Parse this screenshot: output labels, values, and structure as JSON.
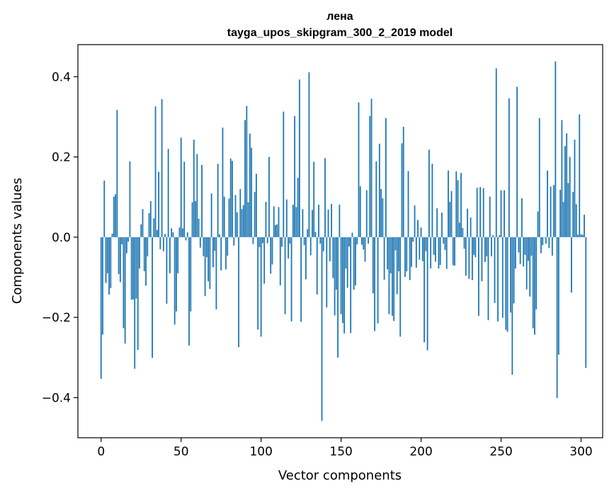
{
  "chart_data": {
    "type": "bar",
    "title": "лена",
    "subtitle": "tayga_upos_skipgram_300_2_2019 model",
    "xlabel": "Vector components",
    "ylabel": "Components values",
    "xlim": [
      -14.5,
      313.5
    ],
    "ylim": [
      -0.5,
      0.48
    ],
    "xticks": [
      0,
      50,
      100,
      150,
      200,
      250,
      300
    ],
    "xtick_labels": [
      "0",
      "50",
      "100",
      "150",
      "200",
      "250",
      "300"
    ],
    "yticks": [
      -0.4,
      -0.2,
      0.0,
      0.2,
      0.4
    ],
    "ytick_labels": [
      "−0.4",
      "−0.2",
      "0.0",
      "0.2",
      "0.4"
    ],
    "values": [
      -0.353,
      -0.243,
      0.141,
      -0.114,
      -0.09,
      -0.143,
      -0.127,
      0.009,
      0.101,
      0.107,
      0.317,
      -0.092,
      -0.112,
      -0.018,
      -0.227,
      -0.265,
      -0.04,
      -0.011,
      0.189,
      -0.156,
      -0.155,
      -0.328,
      -0.153,
      -0.281,
      -0.078,
      0.032,
      0.07,
      -0.085,
      -0.121,
      -0.048,
      0.06,
      0.09,
      -0.301,
      0.047,
      0.326,
      0.018,
      0.163,
      -0.03,
      0.344,
      -0.035,
      0.008,
      -0.166,
      0.22,
      -0.09,
      0.022,
      0.012,
      -0.218,
      -0.185,
      -0.09,
      0.024,
      0.248,
      0.022,
      0.188,
      -0.008,
      0.012,
      -0.27,
      -0.185,
      0.087,
      0.243,
      0.09,
      0.207,
      0.046,
      -0.026,
      0.18,
      -0.047,
      -0.147,
      -0.05,
      -0.11,
      -0.129,
      0.109,
      -0.075,
      -0.034,
      -0.18,
      0.183,
      0.007,
      -0.083,
      0.273,
      0.101,
      -0.08,
      -0.046,
      0.096,
      0.196,
      0.19,
      -0.021,
      0.105,
      0.062,
      -0.274,
      0.12,
      0.07,
      0.08,
      0.292,
      0.327,
      0.087,
      0.258,
      0.223,
      -0.017,
      0.113,
      0.158,
      -0.23,
      -0.025,
      -0.248,
      -0.015,
      -0.116,
      0.088,
      -0.015,
      0.2,
      -0.091,
      -0.068,
      0.077,
      0.03,
      0.032,
      0.075,
      -0.12,
      -0.024,
      0.313,
      -0.192,
      0.094,
      -0.053,
      -0.016,
      -0.21,
      0.081,
      0.302,
      0.075,
      0.148,
      0.393,
      -0.211,
      0.07,
      -0.02,
      -0.105,
      0.02,
      0.411,
      -0.045,
      0.068,
      0.188,
      0.013,
      -0.143,
      0.081,
      -0.016,
      -0.458,
      -0.035,
      0.197,
      -0.175,
      0.069,
      -0.06,
      0.083,
      -0.102,
      -0.195,
      -0.131,
      -0.3,
      0.081,
      -0.192,
      -0.214,
      -0.24,
      -0.078,
      -0.126,
      -0.023,
      -0.239,
      0.011,
      -0.131,
      -0.12,
      -0.018,
      0.336,
      0.127,
      -0.019,
      -0.031,
      -0.061,
      0.117,
      -0.016,
      0.302,
      0.345,
      -0.14,
      -0.234,
      0.189,
      -0.215,
      0.233,
      0.12,
      0.097,
      -0.106,
      0.297,
      -0.08,
      -0.192,
      -0.09,
      -0.196,
      -0.209,
      -0.033,
      -0.142,
      -0.085,
      -0.248,
      0.234,
      0.275,
      -0.099,
      -0.085,
      0.165,
      -0.107,
      -0.074,
      -0.011,
      0.079,
      -0.076,
      0.043,
      -0.056,
      0.024,
      -0.06,
      -0.262,
      -0.035,
      -0.282,
      0.218,
      -0.078,
      0.183,
      -0.044,
      -0.061,
      0.072,
      -0.078,
      -0.069,
      0.061,
      -0.016,
      -0.032,
      -0.079,
      0.166,
      0.088,
      0.115,
      -0.07,
      -0.071,
      0.164,
      0.142,
      0.036,
      0.16,
      0.023,
      -0.029,
      -0.096,
      0.071,
      -0.104,
      0.049,
      -0.107,
      -0.044,
      -0.05,
      0.123,
      -0.196,
      0.125,
      -0.11,
      0.122,
      -0.062,
      -0.048,
      -0.207,
      0.101,
      -0.048,
      0.005,
      -0.164,
      0.421,
      -0.21,
      0.005,
      0.117,
      -0.201,
      0.117,
      -0.231,
      -0.236,
      0.346,
      -0.188,
      -0.343,
      -0.165,
      -0.078,
      0.375,
      -0.038,
      -0.067,
      0.097,
      -0.073,
      -0.044,
      -0.13,
      -0.059,
      -0.148,
      -0.046,
      -0.227,
      -0.243,
      -0.18,
      0.064,
      0.297,
      -0.04,
      -0.02,
      -0.001,
      -0.016,
      0.166,
      -0.027,
      0.126,
      -0.046,
      0.13,
      0.438,
      -0.401,
      -0.293,
      0.118,
      0.292,
      0.088,
      0.227,
      0.259,
      0.135,
      0.2,
      -0.138,
      0.113,
      0.243,
      0.082,
      0.006,
      0.306,
      0.007,
      0.006,
      0.056,
      -0.326
    ]
  }
}
